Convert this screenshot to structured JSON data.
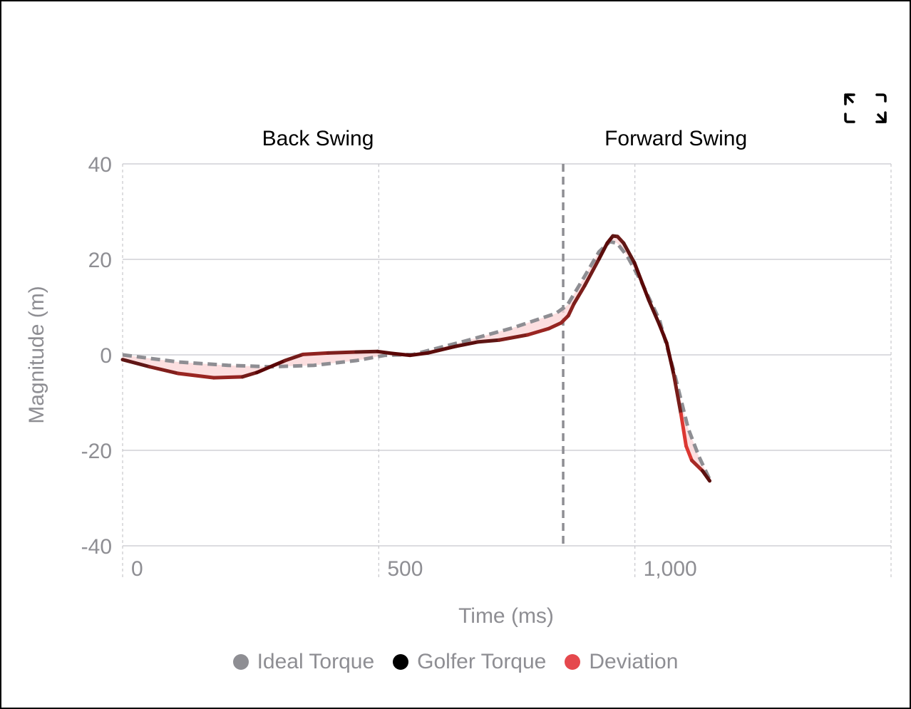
{
  "chart_data": {
    "type": "line",
    "xlabel": "Time (ms)",
    "ylabel": "Magnitude (m)",
    "xlim": [
      0,
      1500
    ],
    "ylim": [
      -40,
      40
    ],
    "x_ticks": [
      0,
      500,
      1000,
      1500
    ],
    "x_tick_labels": [
      "0",
      "500",
      "1,000",
      ""
    ],
    "y_ticks": [
      40,
      20,
      0,
      -20,
      -40
    ],
    "y_tick_labels": [
      "40",
      "20",
      "0",
      "-20",
      "-40"
    ],
    "grid": true,
    "phases": [
      {
        "label": "Back Swing",
        "start": 0,
        "end": 860
      },
      {
        "label": "Forward Swing",
        "start": 860,
        "end": 1500
      }
    ],
    "phase_divider_x": 860,
    "legend": [
      {
        "label": "Ideal Torque",
        "color": "#8e8e93"
      },
      {
        "label": "Golfer Torque",
        "color": "#000000"
      },
      {
        "label": "Deviation",
        "color": "#e5484d"
      }
    ],
    "legend_position": "bottom",
    "series": [
      {
        "name": "Ideal Torque",
        "style": "dashed",
        "color": "#8e8e93",
        "x": [
          0,
          109,
          206,
          289,
          373,
          456,
          512,
          568,
          665,
          763,
          846,
          868,
          895,
          930,
          951,
          965,
          985,
          1013,
          1048,
          1076,
          1104,
          1125,
          1146
        ],
        "y": [
          0,
          -1.5,
          -2.2,
          -2.5,
          -2.2,
          -1.2,
          -0.1,
          0.1,
          2.8,
          5.7,
          8.7,
          10.4,
          15.2,
          21.6,
          23.7,
          23.4,
          20.7,
          15.2,
          7.3,
          -3.4,
          -15.4,
          -21.3,
          -26.1
        ]
      },
      {
        "name": "Golfer Torque",
        "style": "solid",
        "color": "#000000",
        "x": [
          0,
          53,
          109,
          178,
          234,
          262,
          317,
          352,
          401,
          456,
          498,
          526,
          561,
          596,
          651,
          693,
          735,
          791,
          832,
          856,
          870,
          881,
          902,
          930,
          946,
          957,
          966,
          978,
          999,
          1027,
          1048,
          1062,
          1076,
          1090,
          1100,
          1111,
          1132,
          1146
        ],
        "y": [
          -1.0,
          -2.5,
          -3.9,
          -4.8,
          -4.6,
          -3.7,
          -1.2,
          0.1,
          0.4,
          0.6,
          0.7,
          0.3,
          -0.1,
          0.4,
          1.8,
          2.7,
          3.1,
          4.2,
          5.5,
          6.7,
          8.2,
          10.7,
          14.5,
          20.1,
          23.4,
          24.9,
          24.8,
          23.4,
          19.3,
          11.5,
          6.3,
          2.5,
          -4.2,
          -12.4,
          -19.1,
          -22.1,
          -24.3,
          -26.4
        ]
      }
    ]
  },
  "toolbar": {
    "expand_icon": "expand-icon"
  }
}
